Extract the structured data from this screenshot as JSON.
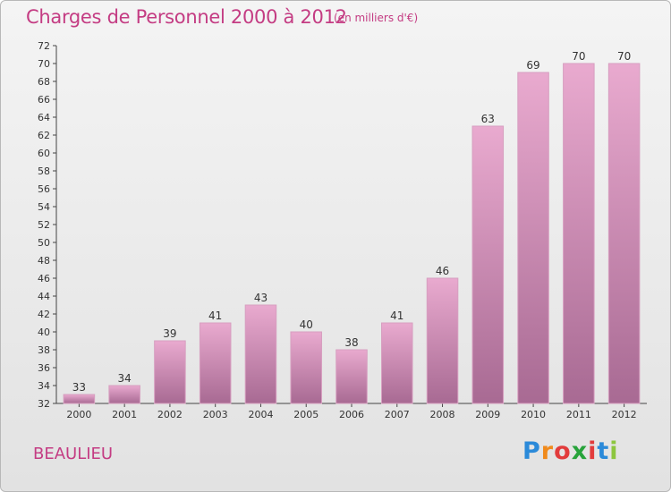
{
  "header": {
    "title": "Charges de Personnel 2000 à 2012",
    "subtitle": "(en milliers d'€)"
  },
  "footer": {
    "commune": "BEAULIEU",
    "logo_text": "Proxiti",
    "logo_colors": [
      "#2b8ad9",
      "#f08a1c",
      "#e23c3c",
      "#27a33a",
      "#e23c3c",
      "#2b8ad9",
      "#8dc63f"
    ]
  },
  "colors": {
    "accent": "#c43c83",
    "bar_light": "#e9aacf",
    "bar_dark": "#a86a93"
  },
  "chart_data": {
    "type": "bar",
    "title": "Charges de Personnel 2000 à 2012",
    "subtitle": "(en milliers d'€)",
    "categories": [
      "2000",
      "2001",
      "2002",
      "2003",
      "2004",
      "2005",
      "2006",
      "2007",
      "2008",
      "2009",
      "2010",
      "2011",
      "2012"
    ],
    "values": [
      33,
      34,
      39,
      41,
      43,
      40,
      38,
      41,
      46,
      63,
      69,
      70,
      70
    ],
    "xlabel": "",
    "ylabel": "",
    "ylim": [
      32,
      72
    ],
    "yticks": [
      32,
      34,
      36,
      38,
      40,
      42,
      44,
      46,
      48,
      50,
      52,
      54,
      56,
      58,
      60,
      62,
      64,
      66,
      68,
      70,
      72
    ],
    "grid": false,
    "data_labels": true
  }
}
